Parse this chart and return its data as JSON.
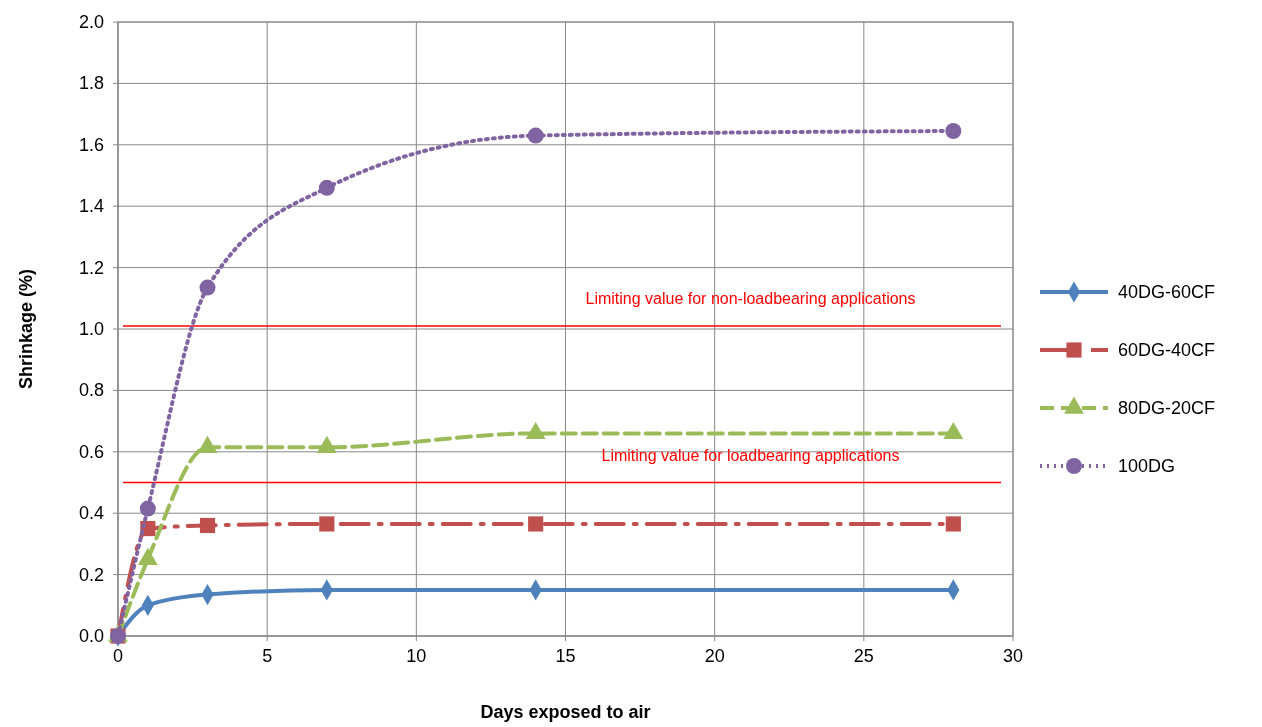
{
  "chart_data": {
    "type": "line",
    "xlabel": "Days exposed to air",
    "ylabel": "Shrinkage (%)",
    "x": [
      0,
      1,
      3,
      7,
      14,
      28
    ],
    "xlim": [
      0,
      30
    ],
    "xticks": [
      0,
      5,
      10,
      15,
      20,
      25,
      30
    ],
    "ylim": [
      0,
      2
    ],
    "yticks": [
      {
        "value": 0,
        "label": "0.0"
      },
      {
        "value": 0.2,
        "label": "0.2"
      },
      {
        "value": 0.4,
        "label": "0.4"
      },
      {
        "value": 0.6,
        "label": "0.6"
      },
      {
        "value": 0.8,
        "label": "0.8"
      },
      {
        "value": 1,
        "label": "1.0"
      },
      {
        "value": 1.2,
        "label": "1.2"
      },
      {
        "value": 1.4,
        "label": "1.4"
      },
      {
        "value": 1.6,
        "label": "1.6"
      },
      {
        "value": 1.8,
        "label": "1.8"
      },
      {
        "value": 2,
        "label": "2.0"
      }
    ],
    "grid": true,
    "legend": "right",
    "series": [
      {
        "name": "40DG-60CF",
        "color": "#4f81bd",
        "marker": "diamond",
        "line_style": "solid",
        "values": [
          0,
          0.1,
          0.135,
          0.15,
          0.15,
          0.15
        ]
      },
      {
        "name": "60DG-40CF",
        "color": "#c0504d",
        "marker": "square",
        "line_style": "dashdot",
        "values": [
          0,
          0.35,
          0.36,
          0.365,
          0.365,
          0.365
        ]
      },
      {
        "name": "80DG-20CF",
        "color": "#9bbb59",
        "marker": "triangle",
        "line_style": "dashed",
        "values": [
          0,
          0.25,
          0.615,
          0.615,
          0.66,
          0.66
        ]
      },
      {
        "name": "100DG",
        "color": "#8064a2",
        "marker": "circle",
        "line_style": "dotted",
        "values": [
          0,
          0.415,
          1.135,
          1.46,
          1.63,
          1.645
        ]
      }
    ],
    "ref_lines": [
      {
        "axis": "y",
        "value": 1.01,
        "label": "Limiting value for non-loadbearing applications",
        "color": "#ff0000"
      },
      {
        "axis": "y",
        "value": 0.5,
        "label": "Limiting value for loadbearing applications",
        "color": "#ff0000"
      }
    ]
  }
}
